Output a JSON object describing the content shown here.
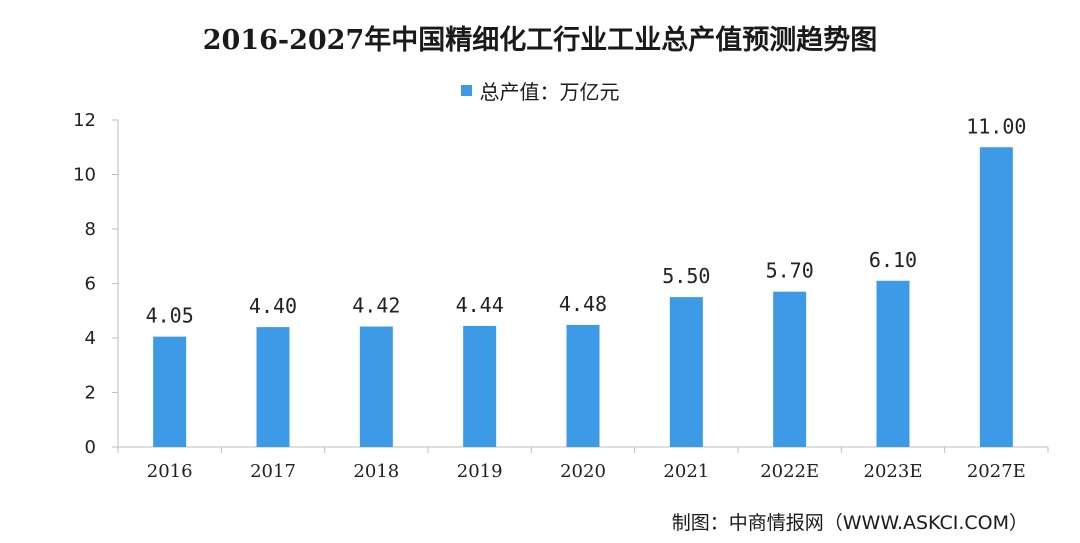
{
  "title": "2016-2027年中国精细化工行业工业总产值预测趋势图",
  "legend_label": "总产值：万亿元",
  "source": "制图：中商情报网（WWW.ASKCI.COM）",
  "colors": {
    "bar": "#3d9ae6",
    "axis": "#bfbfbf"
  },
  "chart_data": {
    "type": "bar",
    "categories": [
      "2016",
      "2017",
      "2018",
      "2019",
      "2020",
      "2021",
      "2022E",
      "2023E",
      "2027E"
    ],
    "series": [
      {
        "name": "总产值：万亿元",
        "values": [
          4.05,
          4.4,
          4.42,
          4.44,
          4.48,
          5.5,
          5.7,
          6.1,
          11.0
        ]
      }
    ],
    "value_labels": [
      "4.05",
      "4.40",
      "4.42",
      "4.44",
      "4.48",
      "5.50",
      "5.70",
      "6.10",
      "11.00"
    ],
    "yticks": [
      "0",
      "2",
      "4",
      "6",
      "8",
      "10",
      "12"
    ],
    "ylim": [
      0,
      12
    ],
    "grid": false,
    "legend_position": "top-center"
  }
}
